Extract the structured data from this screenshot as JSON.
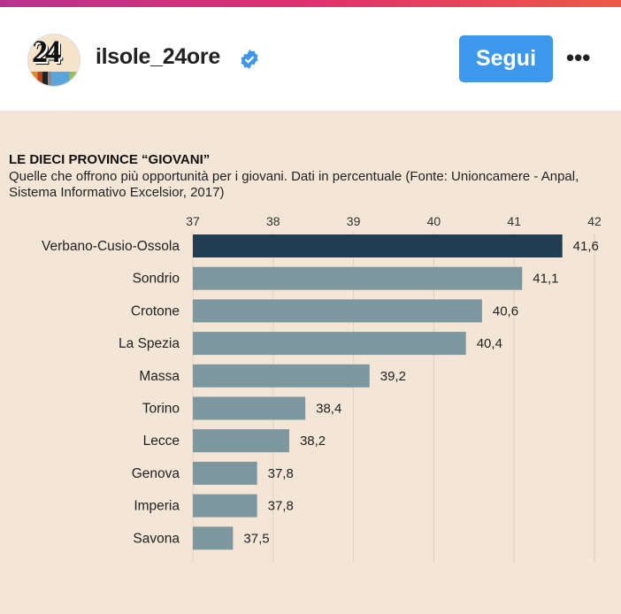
{
  "header": {
    "username": "ilsole_24ore",
    "verified": true,
    "follow_label": "Segui",
    "more_label": "•••",
    "avatar_text": "24",
    "accent_color": "#3d97ea"
  },
  "chart_data": {
    "type": "bar",
    "orientation": "horizontal",
    "title": "LE DIECI PROVINCE “GIOVANI”",
    "subtitle": "Quelle che offrono più opportunità per i giovani. Dati in percentuale (Fonte: Unioncamere - Anpal, Sistema Informativo Excelsior, 2017)",
    "categories": [
      "Verbano-Cusio-Ossola",
      "Sondrio",
      "Crotone",
      "La Spezia",
      "Massa",
      "Torino",
      "Lecce",
      "Genova",
      "Imperia",
      "Savona"
    ],
    "values": [
      41.6,
      41.1,
      40.6,
      40.4,
      39.2,
      38.4,
      38.2,
      37.8,
      37.8,
      37.5
    ],
    "value_labels": [
      "41,6",
      "41,1",
      "40,6",
      "40,4",
      "39,2",
      "38,4",
      "38,2",
      "37,8",
      "37,8",
      "37,5"
    ],
    "xlim": [
      37,
      42
    ],
    "xticks": [
      "37",
      "38",
      "39",
      "40",
      "41",
      "42"
    ],
    "grid": true,
    "highlight_color": "#223d51",
    "bar_color": "#7d979e"
  }
}
